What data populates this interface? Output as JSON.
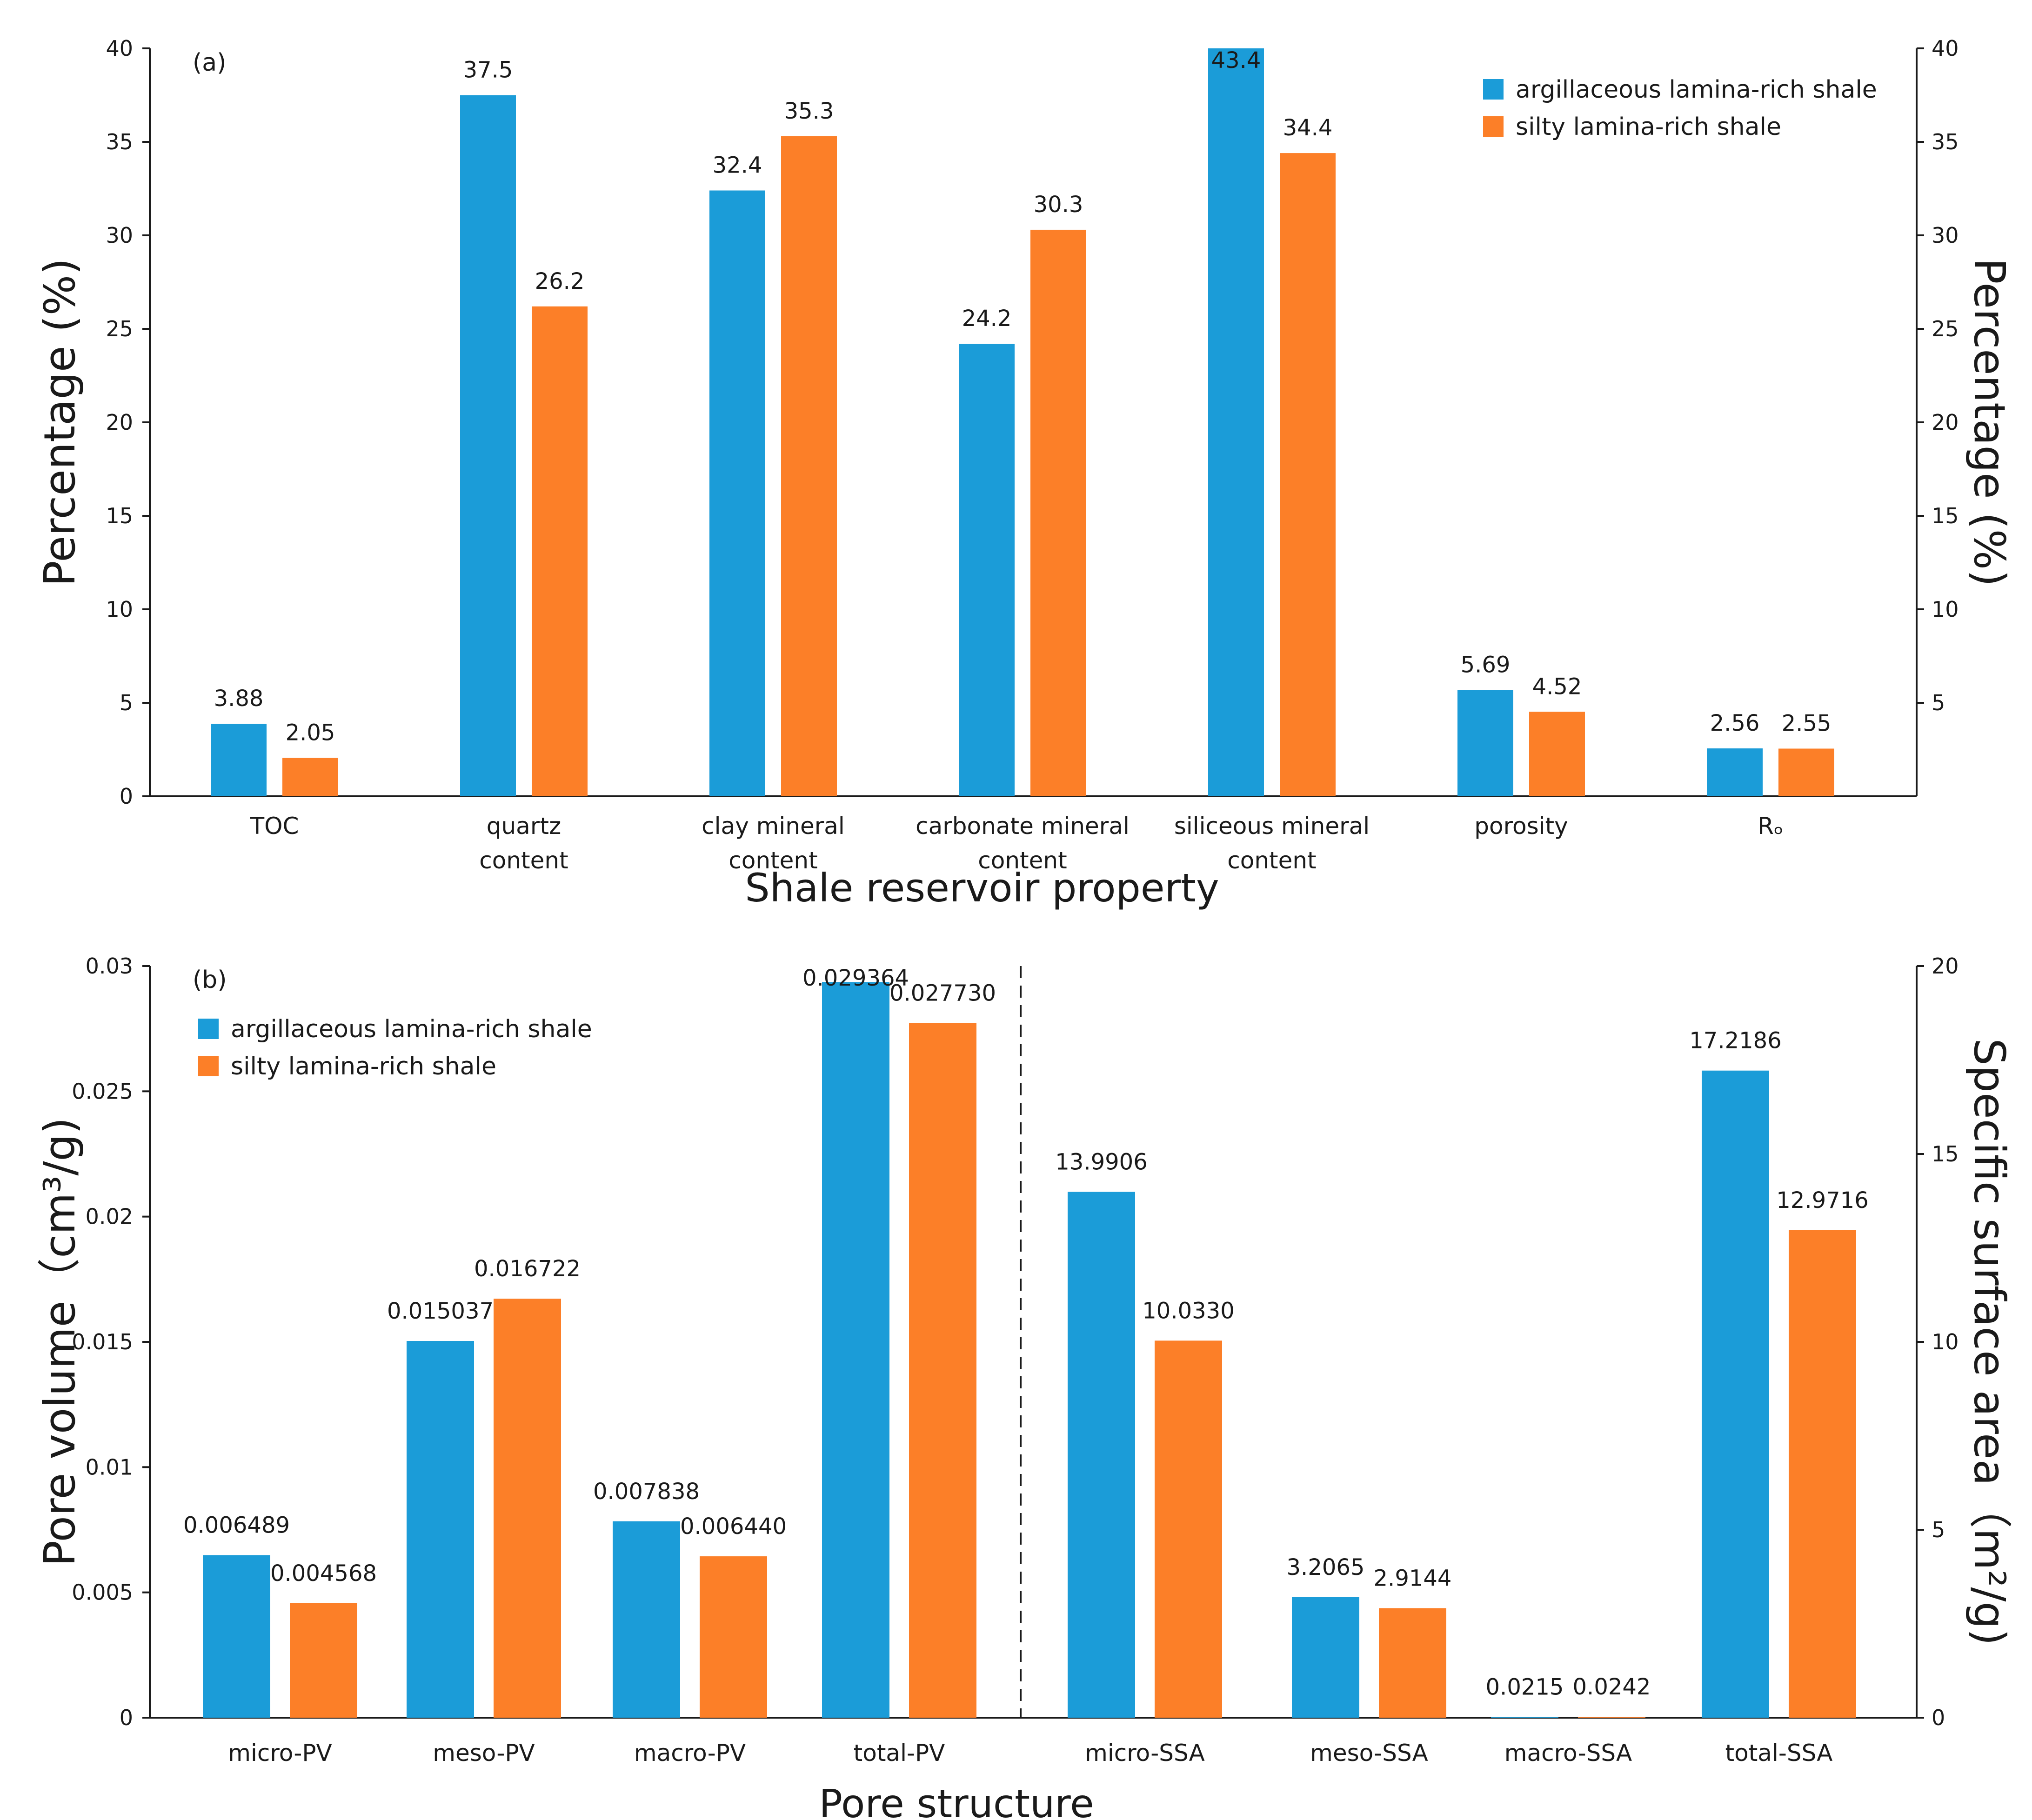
{
  "chart_data": [
    {
      "type": "bar",
      "panel_label": "(a)",
      "title": "",
      "xlabel": "Shale reservoir property",
      "ylabel": "Percentage (%)",
      "ylabel_right": "Percentage (%)",
      "ylim": [
        0,
        40
      ],
      "yticks": [
        "0",
        "5",
        "10",
        "15",
        "20",
        "25",
        "30",
        "35",
        "40"
      ],
      "yticks_right": [
        "5",
        "10",
        "15",
        "20",
        "25",
        "30",
        "35",
        "40"
      ],
      "legend_position": "top-right",
      "categories": [
        [
          "TOC"
        ],
        [
          "quartz",
          "content"
        ],
        [
          "clay mineral",
          "content"
        ],
        [
          "carbonate mineral",
          "content"
        ],
        [
          "siliceous mineral",
          "content"
        ],
        [
          "porosity"
        ],
        [
          "Rₒ"
        ]
      ],
      "series": [
        {
          "name": "argillaceous lamina-rich shale",
          "color": "#1b9cd8",
          "values": [
            3.88,
            37.5,
            32.4,
            24.2,
            43.4,
            5.69,
            2.56
          ],
          "labels": [
            "3.88",
            "37.5",
            "32.4",
            "24.2",
            "43.4",
            "5.69",
            "2.56"
          ]
        },
        {
          "name": "silty lamina-rich shale",
          "color": "#fc7f28",
          "values": [
            2.05,
            26.2,
            35.3,
            30.3,
            34.4,
            4.52,
            2.55
          ],
          "labels": [
            "2.05",
            "26.2",
            "35.3",
            "30.3",
            "34.4",
            "4.52",
            "2.55"
          ]
        }
      ]
    },
    {
      "type": "bar",
      "panel_label": "(b)",
      "title": "",
      "xlabel": "Pore structure",
      "ylabel": "Pore volume（cm³/g)",
      "ylabel_right": "Specific surface area（m²/g)",
      "ylim": [
        0,
        0.03
      ],
      "ylim_right": [
        0,
        20
      ],
      "yticks": [
        "0",
        "0.005",
        "0.01",
        "0.015",
        "0.02",
        "0.025",
        "0.03"
      ],
      "yticks_right": [
        "0",
        "5",
        "10",
        "15",
        "20"
      ],
      "legend_position": "top-left",
      "categories": [
        [
          "micro-PV"
        ],
        [
          "meso-PV"
        ],
        [
          "macro-PV"
        ],
        [
          "total-PV"
        ],
        [
          "micro-SSA"
        ],
        [
          "meso-SSA"
        ],
        [
          "macro-SSA"
        ],
        [
          "total-SSA"
        ]
      ],
      "category_axis": [
        "left",
        "left",
        "left",
        "left",
        "right",
        "right",
        "right",
        "right"
      ],
      "divider_after_category": 4,
      "series": [
        {
          "name": "argillaceous lamina-rich shale",
          "color": "#1b9cd8",
          "values": [
            0.006489,
            0.015037,
            0.007838,
            0.029364,
            13.9906,
            3.2065,
            0.0215,
            17.2186
          ],
          "labels": [
            "0.006489",
            "0.015037",
            "0.007838",
            "0.029364",
            "13.9906",
            "3.2065",
            "0.0215",
            "17.2186"
          ]
        },
        {
          "name": "silty lamina-rich shale",
          "color": "#fc7f28",
          "values": [
            0.004568,
            0.016722,
            0.00644,
            0.02773,
            10.033,
            2.9144,
            0.0242,
            12.9716
          ],
          "labels": [
            "0.004568",
            "0.016722",
            "0.006440",
            "0.027730",
            "10.0330",
            "2.9144",
            "0.0242",
            "12.9716"
          ]
        }
      ]
    }
  ]
}
